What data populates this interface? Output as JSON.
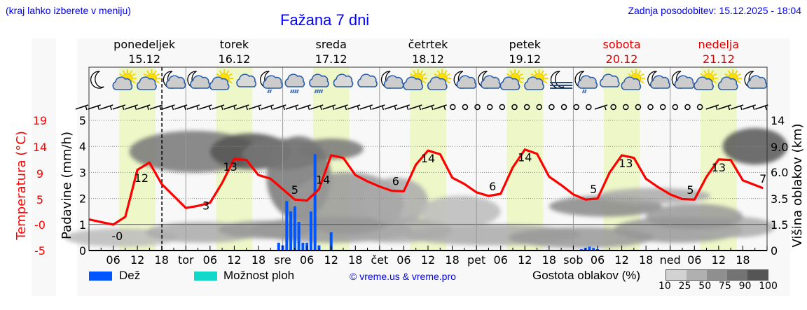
{
  "header": {
    "hint": "(kraj lahko izberete v meniju)",
    "title": "Fažana 7 dni",
    "updated": "Zadnja posodobitev: 15.12.2025 - 18:04"
  },
  "days": [
    {
      "name": "ponedeljek",
      "date": "15.12",
      "weekend": false,
      "short": ""
    },
    {
      "name": "torek",
      "date": "16.12",
      "weekend": false,
      "short": "tor"
    },
    {
      "name": "sreda",
      "date": "17.12",
      "weekend": false,
      "short": "sre"
    },
    {
      "name": "četrtek",
      "date": "18.12",
      "weekend": false,
      "short": "čet"
    },
    {
      "name": "petek",
      "date": "19.12",
      "weekend": false,
      "short": "pet"
    },
    {
      "name": "sobota",
      "date": "20.12",
      "weekend": true,
      "short": "sob"
    },
    {
      "name": "nedelja",
      "date": "21.12",
      "weekend": true,
      "short": "ned"
    }
  ],
  "hour_ticks": [
    "06",
    "12",
    "18"
  ],
  "axes": {
    "temperature_label": "Temperatura (°C)",
    "temperature_ticks": [
      "19",
      "14",
      "9",
      "5",
      "-0",
      "-5"
    ],
    "precip_label": "Padavine (mm/h)",
    "precip_ticks": [
      "5",
      "4",
      "3",
      "2",
      "1",
      "0"
    ],
    "cloud_height_label": "Višina oblakov (km)",
    "cloud_height_ticks": [
      "14",
      "9.0",
      "6.0",
      "3.5",
      "1.5",
      "0"
    ]
  },
  "weather_icons": [
    "moon-clear",
    "sun-cloud",
    "sun-cloud",
    "moon-cloud",
    "moon-cloud",
    "sun-cloud",
    "cloud",
    "moon-cloud-rain",
    "cloud-rain",
    "cloud-rain",
    "cloud",
    "cloud",
    "moon-cloud",
    "sun-cloud",
    "sun-cloud-small",
    "moon-cloud",
    "moon-cloud",
    "sun-cloud",
    "sun-cloud",
    "moon-fog",
    "moon-cloud-rain",
    "cloud",
    "sun-cloud",
    "moon-cloud",
    "moon-cloud",
    "sun-cloud",
    "sun-cloud",
    "moon-cloud"
  ],
  "legend": {
    "rain_label": "Dež",
    "rain_color": "#0055ff",
    "showers_label": "Možnost ploh",
    "showers_color": "#11d8c8",
    "copyright": "© vreme.us & vreme.pro",
    "cloud_density_label": "Gostota oblakov (%)",
    "cloud_density_ticks": [
      "10",
      "25",
      "50",
      "75",
      "90",
      "100"
    ],
    "cloud_density_colors": [
      "#d2d2d2",
      "#b0b0b0",
      "#8f8f8f",
      "#737373",
      "#555555"
    ]
  },
  "colors": {
    "temperature": "#ff0000",
    "daylight": "#eef7c8",
    "weekend_text": "#dd0000",
    "link": "#0000ff"
  },
  "chart_data": {
    "type": "line",
    "title": "Fažana 7 dni",
    "x_range": [
      "15.12 00:00",
      "22.12 00:00"
    ],
    "now_marker": "15.12 18:04",
    "series": [
      {
        "name": "Temperatura (°C)",
        "axis": "left",
        "hours": [
          0,
          3,
          6,
          9,
          12,
          15,
          18,
          21,
          24,
          27,
          30,
          33,
          36,
          39,
          42,
          45,
          48,
          51,
          54,
          57,
          60,
          63,
          66,
          69,
          72,
          75,
          78,
          81,
          84,
          87,
          90,
          93,
          96,
          99,
          102,
          105,
          108,
          111,
          114,
          117,
          120,
          123,
          126,
          129,
          132,
          135,
          138,
          141,
          144,
          147,
          150,
          153,
          156,
          159,
          162,
          165,
          167
        ],
        "values": [
          1.0,
          0.5,
          0.0,
          1.5,
          10.5,
          11.9,
          7.8,
          5.5,
          3.2,
          3.6,
          4.2,
          8.0,
          12.6,
          12.4,
          9.5,
          8.8,
          6.8,
          4.8,
          4.6,
          6.8,
          13.3,
          12.8,
          9.5,
          8.3,
          7.3,
          6.5,
          6.4,
          11.5,
          14.2,
          13.5,
          9.0,
          7.8,
          6.2,
          5.5,
          5.9,
          11.0,
          14.4,
          13.6,
          9.2,
          7.6,
          5.8,
          4.8,
          5.0,
          10.0,
          13.3,
          12.8,
          8.8,
          7.2,
          5.8,
          4.9,
          4.8,
          9.2,
          12.5,
          12.4,
          8.5,
          7.6,
          7.0
        ],
        "labels": [
          {
            "hour": 7,
            "value": "-0"
          },
          {
            "hour": 13,
            "value": "12"
          },
          {
            "hour": 29,
            "value": "3"
          },
          {
            "hour": 35,
            "value": "13"
          },
          {
            "hour": 51,
            "value": "5"
          },
          {
            "hour": 58,
            "value": "14"
          },
          {
            "hour": 76,
            "value": "6"
          },
          {
            "hour": 84,
            "value": "14"
          },
          {
            "hour": 100,
            "value": "6"
          },
          {
            "hour": 108,
            "value": "14"
          },
          {
            "hour": 125,
            "value": "5"
          },
          {
            "hour": 133,
            "value": "13"
          },
          {
            "hour": 149,
            "value": "5"
          },
          {
            "hour": 156,
            "value": "13"
          },
          {
            "hour": 167,
            "value": "7"
          }
        ]
      },
      {
        "name": "Dež (mm/h)",
        "axis": "precip",
        "type": "bar",
        "hours": [
          47,
          48,
          49,
          50,
          51,
          52,
          53,
          54,
          55,
          56,
          57,
          58,
          60,
          122,
          123,
          124,
          125,
          126
        ],
        "values": [
          0.3,
          0.2,
          1.9,
          1.5,
          1.7,
          1.1,
          0.3,
          0.3,
          1.5,
          3.7,
          0.2,
          0,
          0.7,
          0.05,
          0.1,
          0.15,
          0.1,
          0.05
        ]
      }
    ],
    "ylim_temperature": [
      -5,
      19
    ],
    "ylim_precip": [
      0,
      5
    ],
    "ylim_cloud_height_km": [
      0,
      14
    ],
    "grid": "dotted horizontal",
    "legend_position": "bottom"
  }
}
